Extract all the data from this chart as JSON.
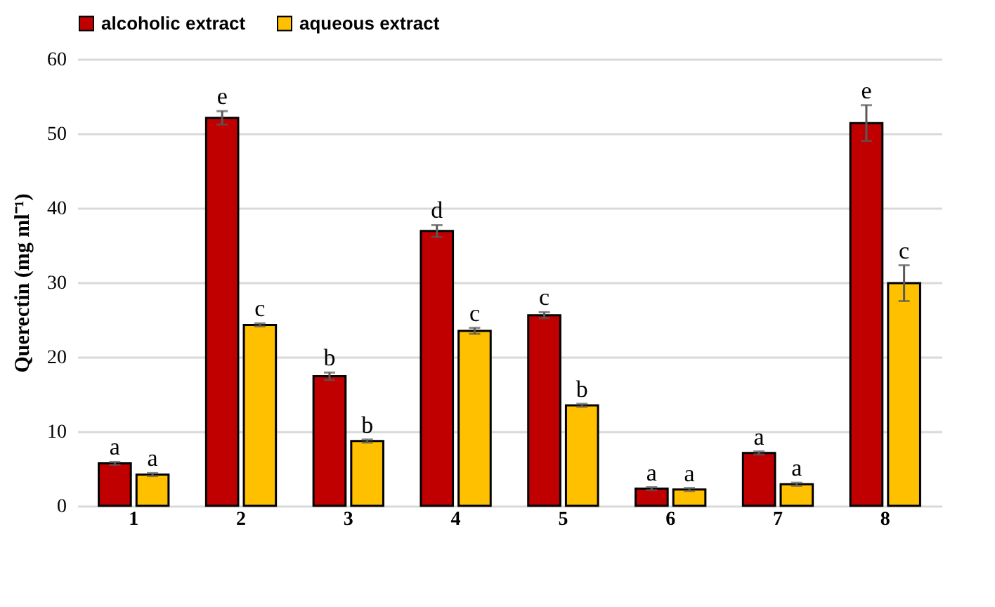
{
  "chart_data": {
    "type": "bar",
    "ylabel": "Querectin (mg ml⁻¹)",
    "categories": [
      "1",
      "2",
      "3",
      "4",
      "5",
      "6",
      "7",
      "8"
    ],
    "series": [
      {
        "name": "alcoholic extract",
        "color": "#c00000",
        "values": [
          5.7,
          52.1,
          17.4,
          36.9,
          25.6,
          2.3,
          7.1,
          51.4
        ],
        "errors": [
          0.2,
          0.9,
          0.5,
          0.8,
          0.4,
          0.2,
          0.2,
          2.4
        ],
        "value_labels": [
          "a",
          "e",
          "b",
          "d",
          "c",
          "a",
          "a",
          "e"
        ]
      },
      {
        "name": "aqueous extract",
        "color": "#ffc000",
        "values": [
          4.2,
          24.3,
          8.7,
          23.5,
          13.5,
          2.2,
          2.9,
          29.9
        ],
        "errors": [
          0.2,
          0.2,
          0.2,
          0.4,
          0.2,
          0.2,
          0.2,
          2.4
        ],
        "value_labels": [
          "a",
          "c",
          "b",
          "c",
          "b",
          "a",
          "a",
          "c"
        ]
      }
    ],
    "ylim": [
      0,
      60
    ],
    "yticks": [
      0,
      10,
      20,
      30,
      40,
      50,
      60
    ],
    "grid": "y",
    "legend": "top"
  }
}
